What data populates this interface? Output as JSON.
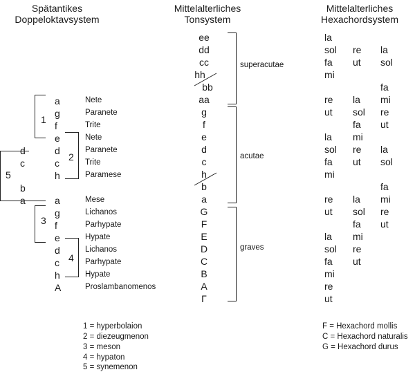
{
  "headers": {
    "col1": [
      "Spätantikes",
      "Doppeloktavsystem"
    ],
    "col2": [
      "Mittelalterliches",
      "Tonsystem"
    ],
    "col3": [
      "Mittelalterliches",
      "Hexachordsystem"
    ]
  },
  "ancient": {
    "main_notes": [
      "a",
      "g",
      "f",
      "e",
      "d",
      "c",
      "h",
      "a",
      "g",
      "f",
      "e",
      "d",
      "c",
      "h",
      "A"
    ],
    "names": [
      "Nete",
      "Paranete",
      "Trite",
      "Nete",
      "Paranete",
      "Trite",
      "Paramese",
      "Mese",
      "Lichanos",
      "Parhypate",
      "Hypate",
      "Lichanos",
      "Parhypate",
      "Hypate",
      "Proslambanomenos"
    ],
    "synemenon_notes": [
      "d",
      "c",
      "b",
      "a"
    ],
    "tetrachord_numbers": [
      "1",
      "2",
      "3",
      "4",
      "5"
    ]
  },
  "medieval": {
    "notes": [
      "ee",
      "dd",
      "cc",
      "hh",
      "bb",
      "aa",
      "g",
      "f",
      "e",
      "d",
      "c",
      "h",
      "b",
      "a",
      "G",
      "F",
      "E",
      "D",
      "C",
      "B",
      "A",
      "Γ"
    ],
    "labels": [
      "superacutae",
      "acutae",
      "graves"
    ]
  },
  "hexachord": {
    "rows": [
      [
        "la",
        "",
        ""
      ],
      [
        "sol",
        "re",
        "la"
      ],
      [
        "fa",
        "ut",
        "sol"
      ],
      [
        "mi",
        "",
        ""
      ],
      [
        "",
        "",
        "fa"
      ],
      [
        "re",
        "la",
        "mi"
      ],
      [
        "ut",
        "sol",
        "re"
      ],
      [
        "",
        "fa",
        "ut"
      ],
      [
        "la",
        "mi",
        ""
      ],
      [
        "sol",
        "re",
        "la"
      ],
      [
        "fa",
        "ut",
        "sol"
      ],
      [
        "mi",
        "",
        ""
      ],
      [
        "",
        "",
        "fa"
      ],
      [
        "re",
        "la",
        "mi"
      ],
      [
        "ut",
        "sol",
        "re"
      ],
      [
        "",
        "fa",
        "ut"
      ],
      [
        "la",
        "mi",
        ""
      ],
      [
        "sol",
        "re",
        ""
      ],
      [
        "fa",
        "ut",
        ""
      ],
      [
        "mi",
        "",
        ""
      ],
      [
        "re",
        "",
        ""
      ],
      [
        "ut",
        "",
        ""
      ]
    ]
  },
  "legends": {
    "tetrachords": [
      "1 = hyperbolaion",
      "2 = diezeugmenon",
      "3 = meson",
      "4 = hypaton",
      "5 = synemenon"
    ],
    "hexachords": [
      "F = Hexachord mollis",
      "C = Hexachord naturalis",
      "G = Hexachord durus"
    ]
  }
}
